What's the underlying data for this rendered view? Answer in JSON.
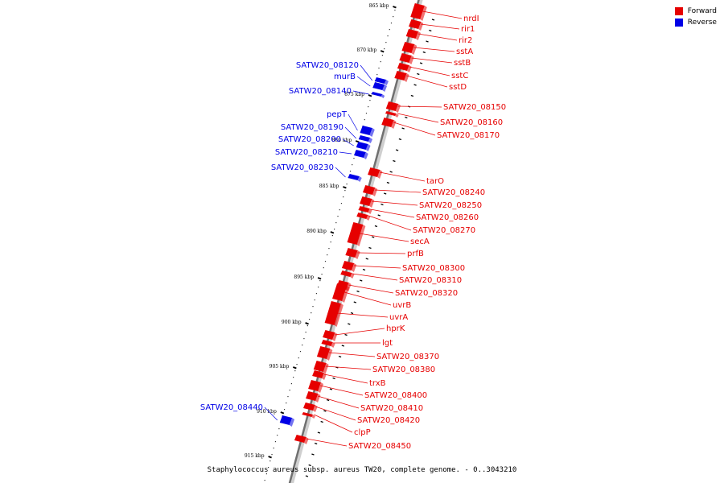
{
  "legend": {
    "forward_label": "Forward",
    "reverse_label": "Reverse"
  },
  "colors": {
    "forward": "#e60000",
    "reverse": "#0000e6",
    "axis": "#707070"
  },
  "caption": "Staphylococcus aureus subsp. aureus TW20, complete genome. - 0..3043210",
  "scale_ticks": [
    {
      "label": "865 kbp"
    },
    {
      "label": "870 kbp"
    },
    {
      "label": "875 kbp"
    },
    {
      "label": "880 kbp"
    },
    {
      "label": "885 kbp"
    },
    {
      "label": "890 kbp"
    },
    {
      "label": "895 kbp"
    },
    {
      "label": "900 kbp"
    },
    {
      "label": "905 kbp"
    },
    {
      "label": "910 kbp"
    },
    {
      "label": "915 kbp"
    }
  ],
  "forward_genes": [
    {
      "name": "nrdI"
    },
    {
      "name": "rir1"
    },
    {
      "name": "rir2"
    },
    {
      "name": "sstA"
    },
    {
      "name": "sstB"
    },
    {
      "name": "sstC"
    },
    {
      "name": "sstD"
    },
    {
      "name": "SATW20_08150"
    },
    {
      "name": "SATW20_08160"
    },
    {
      "name": "SATW20_08170"
    },
    {
      "name": "tarO"
    },
    {
      "name": "SATW20_08240"
    },
    {
      "name": "SATW20_08250"
    },
    {
      "name": "SATW20_08260"
    },
    {
      "name": "SATW20_08270"
    },
    {
      "name": "secA"
    },
    {
      "name": "prfB"
    },
    {
      "name": "SATW20_08300"
    },
    {
      "name": "SATW20_08310"
    },
    {
      "name": "SATW20_08320"
    },
    {
      "name": "uvrB"
    },
    {
      "name": "uvrA"
    },
    {
      "name": "hprK"
    },
    {
      "name": "lgt"
    },
    {
      "name": "SATW20_08370"
    },
    {
      "name": "SATW20_08380"
    },
    {
      "name": "trxB"
    },
    {
      "name": "SATW20_08400"
    },
    {
      "name": "SATW20_08410"
    },
    {
      "name": "SATW20_08420"
    },
    {
      "name": "clpP"
    },
    {
      "name": "SATW20_08450"
    }
  ],
  "reverse_genes": [
    {
      "name": "SATW20_08120"
    },
    {
      "name": "murB"
    },
    {
      "name": "SATW20_08140"
    },
    {
      "name": "pepT"
    },
    {
      "name": "SATW20_08190"
    },
    {
      "name": "SATW20_08200"
    },
    {
      "name": "SATW20_08210"
    },
    {
      "name": "SATW20_08230"
    },
    {
      "name": "SATW20_08440"
    }
  ]
}
